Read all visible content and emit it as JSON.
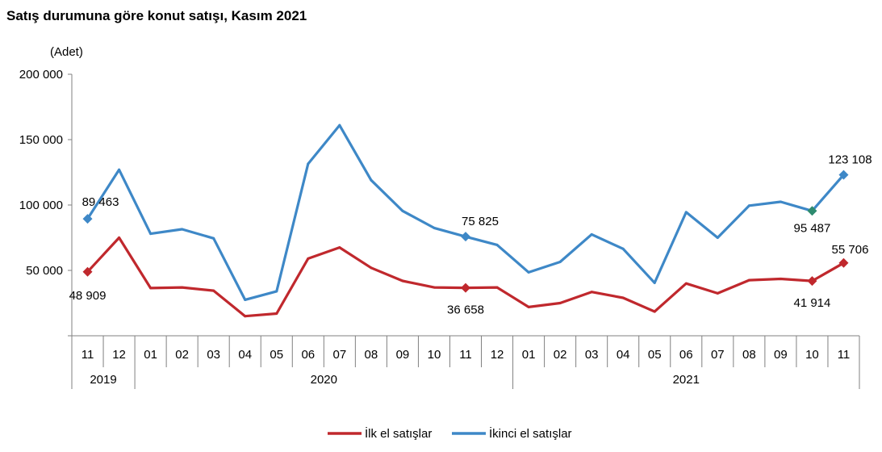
{
  "title": "Satış durumuna göre konut satışı, Kasım 2021",
  "chart_data": {
    "type": "line",
    "unit_label": "(Adet)",
    "ylim": [
      0,
      200000
    ],
    "y_ticks": [
      {
        "value": 50000,
        "label": "50 000"
      },
      {
        "value": 100000,
        "label": "100 000"
      },
      {
        "value": 150000,
        "label": "150 000"
      },
      {
        "value": 200000,
        "label": "200 000"
      }
    ],
    "categories": [
      "11",
      "12",
      "01",
      "02",
      "03",
      "04",
      "05",
      "06",
      "07",
      "08",
      "09",
      "10",
      "11",
      "12",
      "01",
      "02",
      "03",
      "04",
      "05",
      "06",
      "07",
      "08",
      "09",
      "10",
      "11"
    ],
    "year_groups": [
      {
        "label": "2019",
        "start": 0,
        "end": 1
      },
      {
        "label": "2020",
        "start": 2,
        "end": 13
      },
      {
        "label": "2021",
        "start": 14,
        "end": 24
      }
    ],
    "series": [
      {
        "name": "İlk el satışlar",
        "color": "#c0282d",
        "values": [
          48909,
          75000,
          36500,
          37000,
          34500,
          15000,
          17000,
          59000,
          67500,
          52000,
          42000,
          37000,
          36658,
          37000,
          22000,
          25000,
          33500,
          29000,
          18500,
          40000,
          32500,
          42500,
          43500,
          41914,
          55706
        ],
        "marked": [
          0,
          12,
          23,
          24
        ],
        "labels": [
          {
            "index": 0,
            "text": "48 909"
          },
          {
            "index": 12,
            "text": "36 658"
          },
          {
            "index": 23,
            "text": "41 914"
          },
          {
            "index": 24,
            "text": "55 706"
          }
        ]
      },
      {
        "name": "İkinci el satışlar",
        "color": "#3e88c7",
        "marker_color_override": {
          "23": "#2e8b6f"
        },
        "values": [
          89463,
          127000,
          78000,
          81500,
          74500,
          27500,
          34000,
          131500,
          161000,
          119000,
          95500,
          82500,
          75825,
          69500,
          48500,
          56500,
          77500,
          66500,
          40500,
          94500,
          75000,
          99500,
          102500,
          95487,
          123108
        ],
        "marked": [
          0,
          12,
          23,
          24
        ],
        "labels": [
          {
            "index": 0,
            "text": "89 463"
          },
          {
            "index": 12,
            "text": "75 825"
          },
          {
            "index": 23,
            "text": "95 487"
          },
          {
            "index": 24,
            "text": "123 108"
          }
        ]
      }
    ],
    "legend_position": "bottom-center"
  }
}
